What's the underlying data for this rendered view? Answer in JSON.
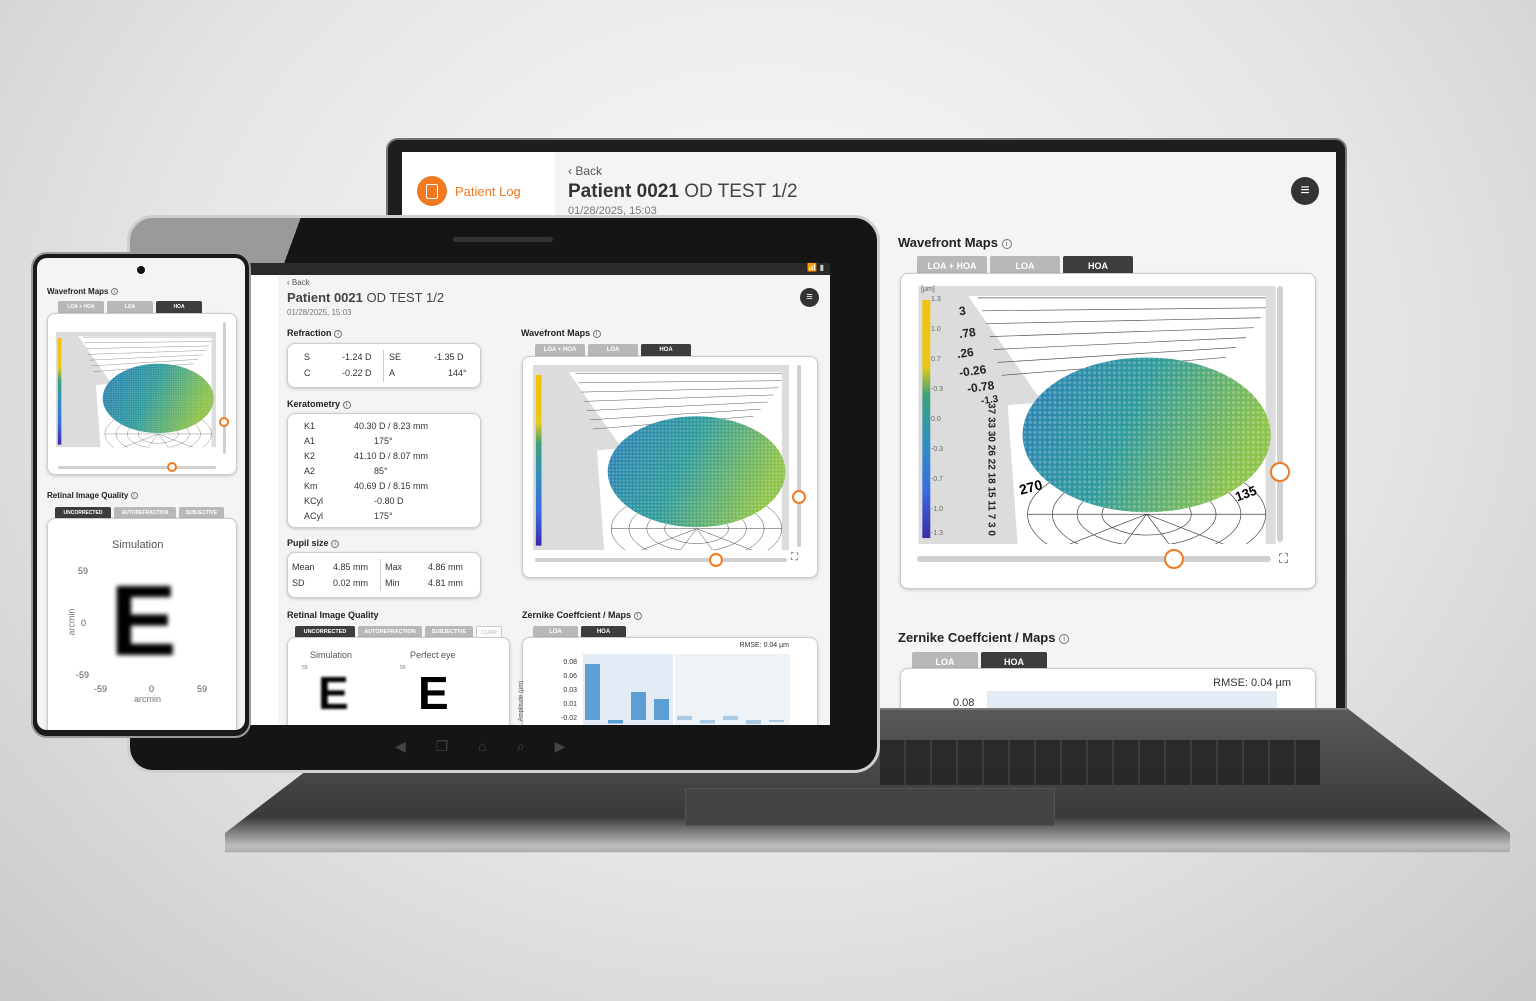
{
  "accent": "#f07a22",
  "laptop": {
    "sidebar": {
      "logo_label": "Patient Log",
      "logo_icon": "clipboard-icon"
    },
    "header": {
      "back": "Back",
      "patient": "Patient 0021",
      "test": "OD TEST 1/2",
      "date": "01/28/2025, 15:03"
    },
    "wavefront": {
      "title": "Wavefront Maps",
      "tabs": [
        "LOA + HOA",
        "LOA",
        "HOA"
      ],
      "active_tab": "HOA",
      "unit": "[µm]",
      "colorbar_ticks": [
        "1.3",
        "1.0",
        "0.7",
        "-0.3",
        "0.0",
        "-0.3",
        "-0.7",
        "-1.0",
        "-1.3"
      ],
      "z_ticks": [
        "3",
        ".78",
        ".26",
        "-0.26",
        "-0.78",
        "-1.3"
      ],
      "r_ticks": "37 33 30 26 22 18 15 11 7 3 0",
      "angle_labels": [
        "270",
        "135"
      ]
    },
    "zernike": {
      "title": "Zernike Coeffcient / Maps",
      "tabs": [
        "LOA",
        "HOA"
      ],
      "active_tab": "HOA",
      "rmse": "RMSE: 0.04 µm",
      "first_tick": "0.08"
    }
  },
  "tablet": {
    "header": {
      "back": "Back",
      "patient": "Patient 0021",
      "test": "OD TEST 1/2",
      "date": "01/28/2025, 15:03"
    },
    "refraction": {
      "title": "Refraction",
      "rows": [
        [
          "S",
          "-1.24 D",
          "SE",
          "-1.35 D"
        ],
        [
          "C",
          "-0.22 D",
          "A",
          "144°"
        ]
      ]
    },
    "keratometry": {
      "title": "Keratometry",
      "rows": [
        [
          "K1",
          "40.30 D / 8.23 mm"
        ],
        [
          "A1",
          "175°"
        ],
        [
          "K2",
          "41.10 D / 8.07 mm"
        ],
        [
          "A2",
          "85°"
        ],
        [
          "Km",
          "40.69 D / 8.15 mm"
        ],
        [
          "KCyl",
          "-0.80 D"
        ],
        [
          "ACyl",
          "175°"
        ]
      ]
    },
    "pupil": {
      "title": "Pupil size",
      "rows": [
        [
          "Mean",
          "4.85 mm",
          "Max",
          "4.86 mm"
        ],
        [
          "SD",
          "0.02 mm",
          "Min",
          "4.81 mm"
        ]
      ]
    },
    "retinal": {
      "title": "Retinal Image Quality",
      "tabs": [
        "UNCORRECTED",
        "AUTOREFRACTION",
        "SUBJECTIVE",
        "CURR"
      ],
      "active_tab": "UNCORRECTED",
      "simulation": "Simulation",
      "perfect": "Perfect eye",
      "tick": "59",
      "letter": "E"
    },
    "wavefront": {
      "title": "Wavefront Maps",
      "tabs": [
        "LOA + HOA",
        "LOA",
        "HOA"
      ],
      "active_tab": "HOA"
    },
    "zernike": {
      "title": "Zernike Coeffcient / Maps",
      "tabs": [
        "LOA",
        "HOA"
      ],
      "active_tab": "HOA",
      "rmse": "RMSE: 0.04 µm",
      "ylabel": "Amplitude (µm)",
      "yticks": [
        "0.08",
        "0.06",
        "0.03",
        "0.01",
        "-0.02"
      ],
      "bars": [
        0.08,
        -0.005,
        0.04,
        0.03,
        0.006,
        -0.005,
        0.006,
        -0.006,
        -0.003
      ]
    }
  },
  "phone": {
    "wavefront": {
      "title": "Wavefront Maps",
      "tabs": [
        "LOA + HOA",
        "LOA",
        "HOA"
      ],
      "active_tab": "HOA"
    },
    "retinal": {
      "title": "Retinal Image Quality",
      "tabs": [
        "UNCORRECTED",
        "AUTOREFRACTION",
        "SUBJECTIVE"
      ],
      "active_tab": "UNCORRECTED",
      "simulation": "Simulation",
      "y_ticks": [
        "59",
        "0",
        "-59"
      ],
      "x_ticks": [
        "-59",
        "0",
        "59"
      ],
      "axis_label": "arcmin",
      "letter": "E"
    }
  }
}
